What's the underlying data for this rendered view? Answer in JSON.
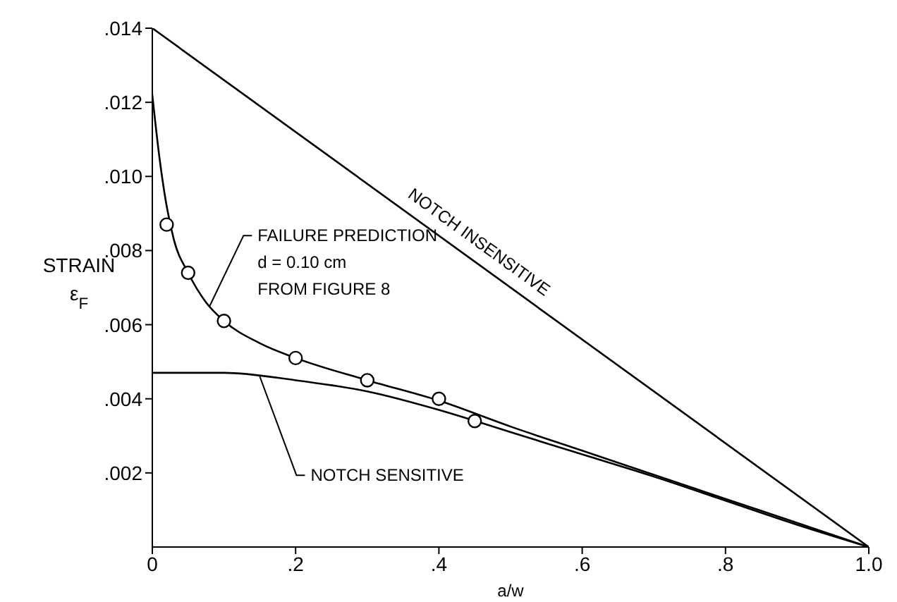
{
  "chart_data": {
    "type": "line",
    "xlabel": "a/w",
    "ylabel": "STRAIN ε$_{F}$",
    "xlim": [
      0,
      1
    ],
    "ylim": [
      0,
      0.014
    ],
    "xticks": [
      0,
      {
        "value": 0.2,
        "label": ".2"
      },
      {
        "value": 0.4,
        "label": ".4"
      },
      {
        "value": 0.6,
        "label": ".6"
      },
      {
        "value": 0.8,
        "label": ".8"
      },
      {
        "value": 1,
        "label": "1.0"
      }
    ],
    "yticks": [
      {
        "value": 0.002,
        "label": ".002"
      },
      {
        "value": 0.004,
        "label": ".004"
      },
      {
        "value": 0.006,
        "label": ".006"
      },
      {
        "value": 0.008,
        "label": ".008"
      },
      {
        "value": 0.01,
        "label": ".010"
      },
      {
        "value": 0.012,
        "label": ".012"
      },
      {
        "value": 0.014,
        "label": ".014"
      }
    ],
    "grid": false,
    "series": [
      {
        "color": "#000000",
        "x": [
          0,
          1
        ],
        "values": [
          0.014,
          0
        ]
      },
      {
        "color": "#000000",
        "x": [
          0,
          0.01,
          0.02,
          0.03,
          0.05,
          0.075,
          0.1,
          0.15,
          0.2,
          0.3,
          0.4,
          0.5,
          0.6,
          0.7,
          0.8,
          0.9,
          1
        ],
        "values": [
          0.0122,
          0.0105,
          0.0092,
          0.0083,
          0.0074,
          0.0066,
          0.0061,
          0.0055,
          0.0051,
          0.0045,
          0.00395,
          0.00325,
          0.0026,
          0.00195,
          0.0013,
          0.00065,
          0
        ]
      },
      {
        "color": "#000000",
        "x": [
          0,
          0.1,
          0.2,
          0.3,
          0.4,
          0.5,
          0.6,
          0.7,
          0.8,
          0.9,
          1
        ],
        "values": [
          0.0047,
          0.0047,
          0.0045,
          0.0042,
          0.0037,
          0.0031,
          0.0025,
          0.0019,
          0.00125,
          0.0006,
          0
        ]
      },
      {
        "type": "scatter",
        "color": "#000000",
        "marker": "circle",
        "x": [
          0.02,
          0.05,
          0.1,
          0.2,
          0.3,
          0.4,
          0.45
        ],
        "values": [
          0.0087,
          0.0074,
          0.0061,
          0.0051,
          0.0045,
          0.004,
          0.0034
        ]
      }
    ],
    "annotations": [
      {
        "text": "NOTCH INSENSITIVE",
        "x": 0.44,
        "y": 0.0078
      },
      {
        "text": "FAILURE PREDICTION\nd = 0.10 cm\nFROM FIGURE 8",
        "x": 0.08,
        "y": 0.0065
      },
      {
        "text": "NOTCH SENSITIVE",
        "x": 0.15,
        "y": 0.0046
      }
    ]
  }
}
